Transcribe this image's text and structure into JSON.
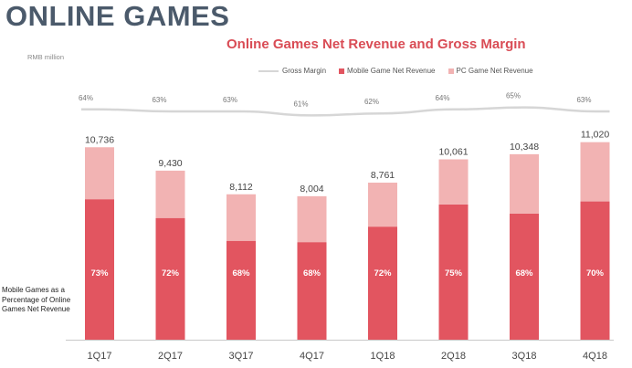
{
  "page_title": "ONLINE GAMES",
  "unit_note": "RMB million",
  "side_note": "Mobile Games as a Percentage of Online Games Net Revenue",
  "colors": {
    "mobile": "#e25560",
    "pc": "#f2b3b3",
    "margin_line": "#d6d6d6",
    "axis": "#c8c8c8",
    "title": "#d94c55",
    "heading": "#4b5a6b"
  },
  "chart_data": {
    "type": "bar",
    "stacked": true,
    "title": "Online Games Net Revenue and Gross Margin",
    "categories": [
      "1Q17",
      "2Q17",
      "3Q17",
      "4Q17",
      "1Q18",
      "2Q18",
      "3Q18",
      "4Q18"
    ],
    "series": [
      {
        "name": "Mobile Game Net Revenue",
        "values": [
          7837,
          6790,
          5516,
          5443,
          6308,
          7546,
          7037,
          7714
        ]
      },
      {
        "name": "PC Game Net Revenue",
        "values": [
          2899,
          2640,
          2596,
          2561,
          2453,
          2515,
          3311,
          3306
        ]
      }
    ],
    "totals": [
      10736,
      9430,
      8112,
      8004,
      8761,
      10061,
      10348,
      11020
    ],
    "total_labels": [
      "10,736",
      "9,430",
      "8,112",
      "8,004",
      "8,761",
      "10,061",
      "10,348",
      "11,020"
    ],
    "mobile_share_labels": [
      "73%",
      "72%",
      "68%",
      "68%",
      "72%",
      "75%",
      "68%",
      "70%"
    ],
    "gross_margin": {
      "name": "Gross Margin",
      "values": [
        64,
        63,
        63,
        61,
        62,
        64,
        65,
        63
      ],
      "labels": [
        "64%",
        "63%",
        "63%",
        "61%",
        "62%",
        "64%",
        "65%",
        "63%"
      ]
    },
    "legend": [
      "Gross Margin",
      "Mobile Game Net Revenue",
      "PC Game Net Revenue"
    ],
    "legend_position": "top",
    "grid": false
  }
}
